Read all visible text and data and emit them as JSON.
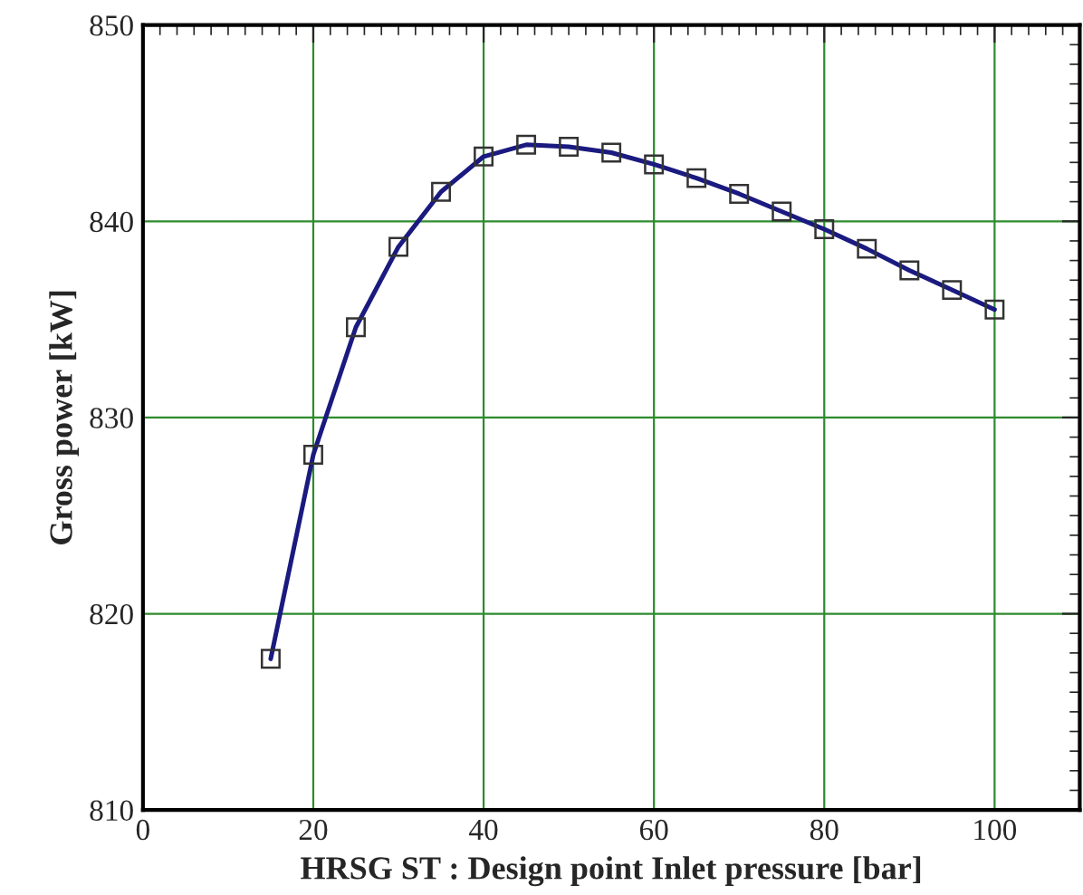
{
  "chart_data": {
    "type": "line",
    "xlabel": "HRSG ST : Design point Inlet pressure [bar]",
    "ylabel": "Gross power [kW]",
    "x": [
      15,
      20,
      25,
      30,
      35,
      40,
      45,
      50,
      55,
      60,
      65,
      70,
      75,
      80,
      85,
      90,
      95,
      100
    ],
    "series": [
      {
        "color": "#1a1a80",
        "values": [
          817.7,
          828.1,
          834.6,
          838.7,
          841.5,
          843.3,
          843.9,
          843.8,
          843.5,
          842.9,
          842.2,
          841.4,
          840.5,
          839.6,
          838.6,
          837.5,
          836.5,
          835.5
        ]
      }
    ],
    "marker": "square",
    "line_style": "solid",
    "xlim": [
      0,
      110
    ],
    "ylim": [
      810,
      850
    ],
    "xticks": [
      0,
      20,
      40,
      60,
      80,
      100
    ],
    "yticks": [
      810,
      820,
      830,
      840,
      850
    ],
    "grid": true
  }
}
